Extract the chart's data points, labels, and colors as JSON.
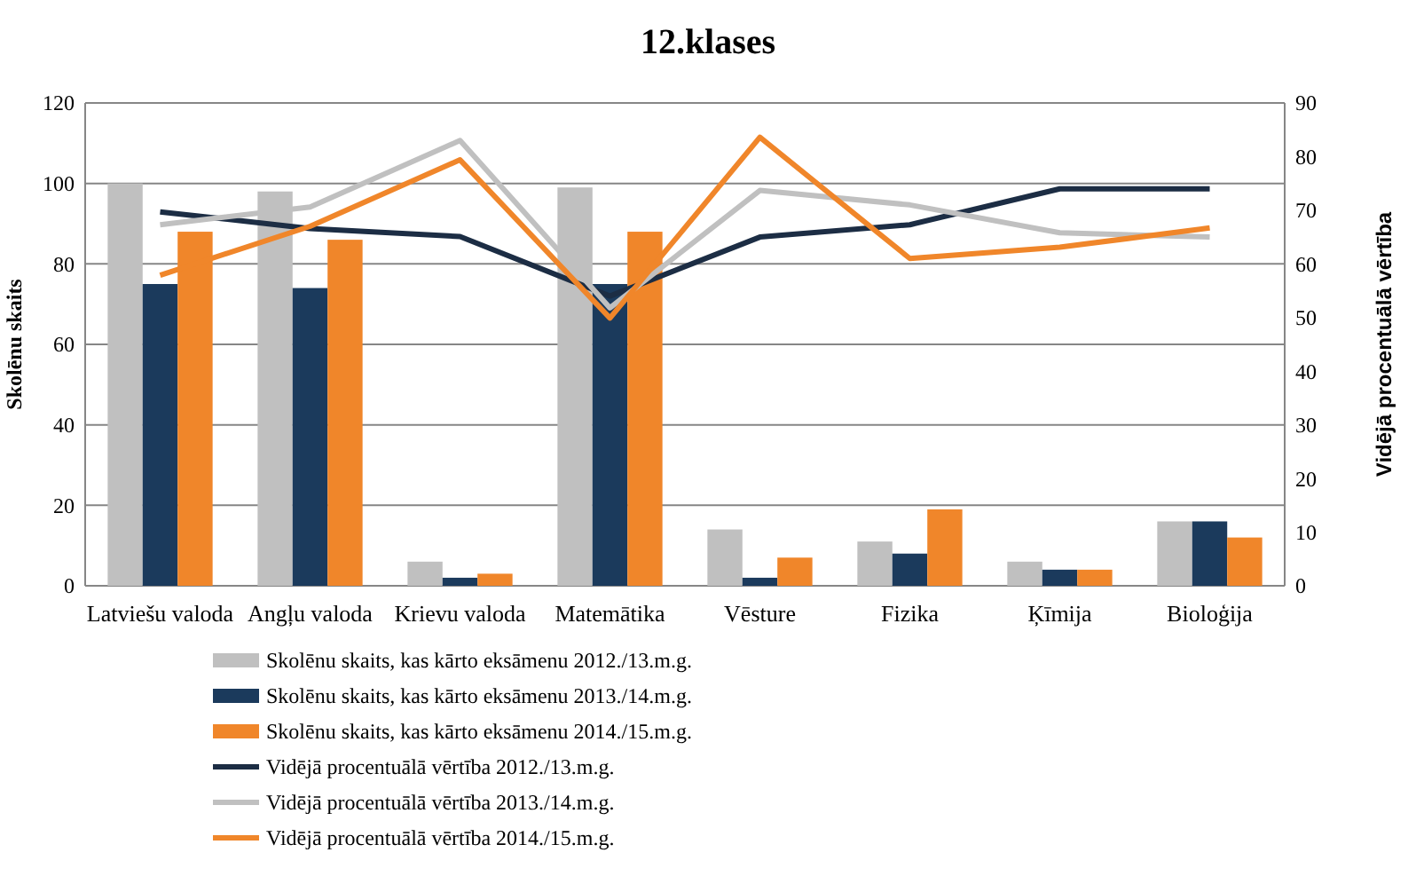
{
  "chart_data": {
    "type": "bar",
    "title": "12.klases",
    "ylabel": "Skolēnu skaits",
    "y2label": "Vidējā procentuālā vērtība",
    "categories": [
      "Latviešu valoda",
      "Angļu valoda",
      "Krievu valoda",
      "Matemātika",
      "Vēsture",
      "Fizika",
      "Ķīmija",
      "Bioloģija"
    ],
    "series": [
      {
        "name": "Skolēnu skaits, kas kārto eksāmenu 2012./13.m.g.",
        "color": "#c0c0c0",
        "values": [
          100,
          98,
          6,
          99,
          14,
          11,
          6,
          16
        ]
      },
      {
        "name": "Skolēnu skaits, kas kārto eksāmenu 2013./14.m.g.",
        "color": "#1b3a5c",
        "values": [
          75,
          74,
          2,
          75,
          2,
          8,
          4,
          16
        ]
      },
      {
        "name": "Skolēnu skaits, kas kārto eksāmenu 2014./15.m.g.",
        "color": "#f0862a",
        "values": [
          88,
          86,
          3,
          88,
          7,
          19,
          4,
          12
        ]
      },
      {
        "name": "Vidējā procentuālā vērtība 2012./13.m.g.",
        "type": "line",
        "axis": "y2",
        "color": "#1c2d44",
        "values": [
          69.7,
          66.6,
          65.1,
          54,
          65,
          67.3,
          74,
          74
        ]
      },
      {
        "name": "Vidējā procentuālā vērtība 2013./14.m.g.",
        "type": "line",
        "axis": "y2",
        "color": "#c0c0c0",
        "values": [
          67.3,
          70.6,
          83,
          51.8,
          73.7,
          71,
          65.8,
          65
        ]
      },
      {
        "name": "Vidējā procentuālā vērtība 2014./15.m.g.",
        "type": "line",
        "axis": "y2",
        "color": "#f0862a",
        "values": [
          57.9,
          67,
          79.4,
          49.9,
          83.6,
          61,
          63.1,
          66.7
        ]
      }
    ],
    "ylim": [
      0,
      120
    ],
    "yticks": [
      0,
      20,
      40,
      60,
      80,
      100,
      120
    ],
    "y2lim": [
      0,
      90
    ],
    "y2ticks": [
      0,
      10,
      20,
      30,
      40,
      50,
      60,
      70,
      80,
      90
    ],
    "grid": "y",
    "legend": "bottom",
    "line_style": "solid"
  }
}
